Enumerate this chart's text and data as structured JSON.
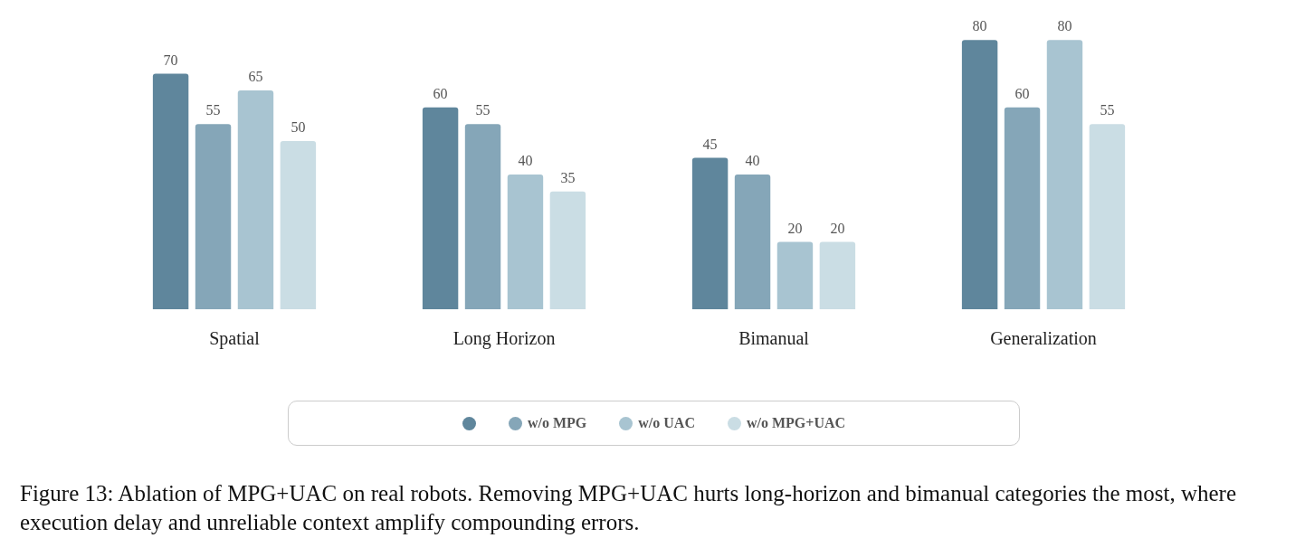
{
  "chart_data": {
    "type": "bar",
    "categories": [
      "Spatial",
      "Long Horizon",
      "Bimanual",
      "Generalization"
    ],
    "series": [
      {
        "color": "#5f869c",
        "values": [
          70,
          60,
          45,
          80
        ]
      },
      {
        "name": "w/o MPG",
        "color": "#85a6b8",
        "values": [
          55,
          55,
          40,
          60
        ]
      },
      {
        "name": "w/o UAC",
        "color": "#a8c4d1",
        "values": [
          65,
          40,
          20,
          80
        ]
      },
      {
        "name": "w/o MPG+UAC",
        "color": "#cadde4",
        "values": [
          50,
          35,
          20,
          55
        ]
      }
    ],
    "data_labels": true,
    "grid": false,
    "legend": "bottom",
    "tick_labels": "x",
    "annotations": [
      "Figure 13: Ablation of MPG+UAC on real robots. Removing MPG+UAC hurts long-horizon and bimanual categories the most, where execution delay and unreliable context amplify compounding errors."
    ]
  }
}
